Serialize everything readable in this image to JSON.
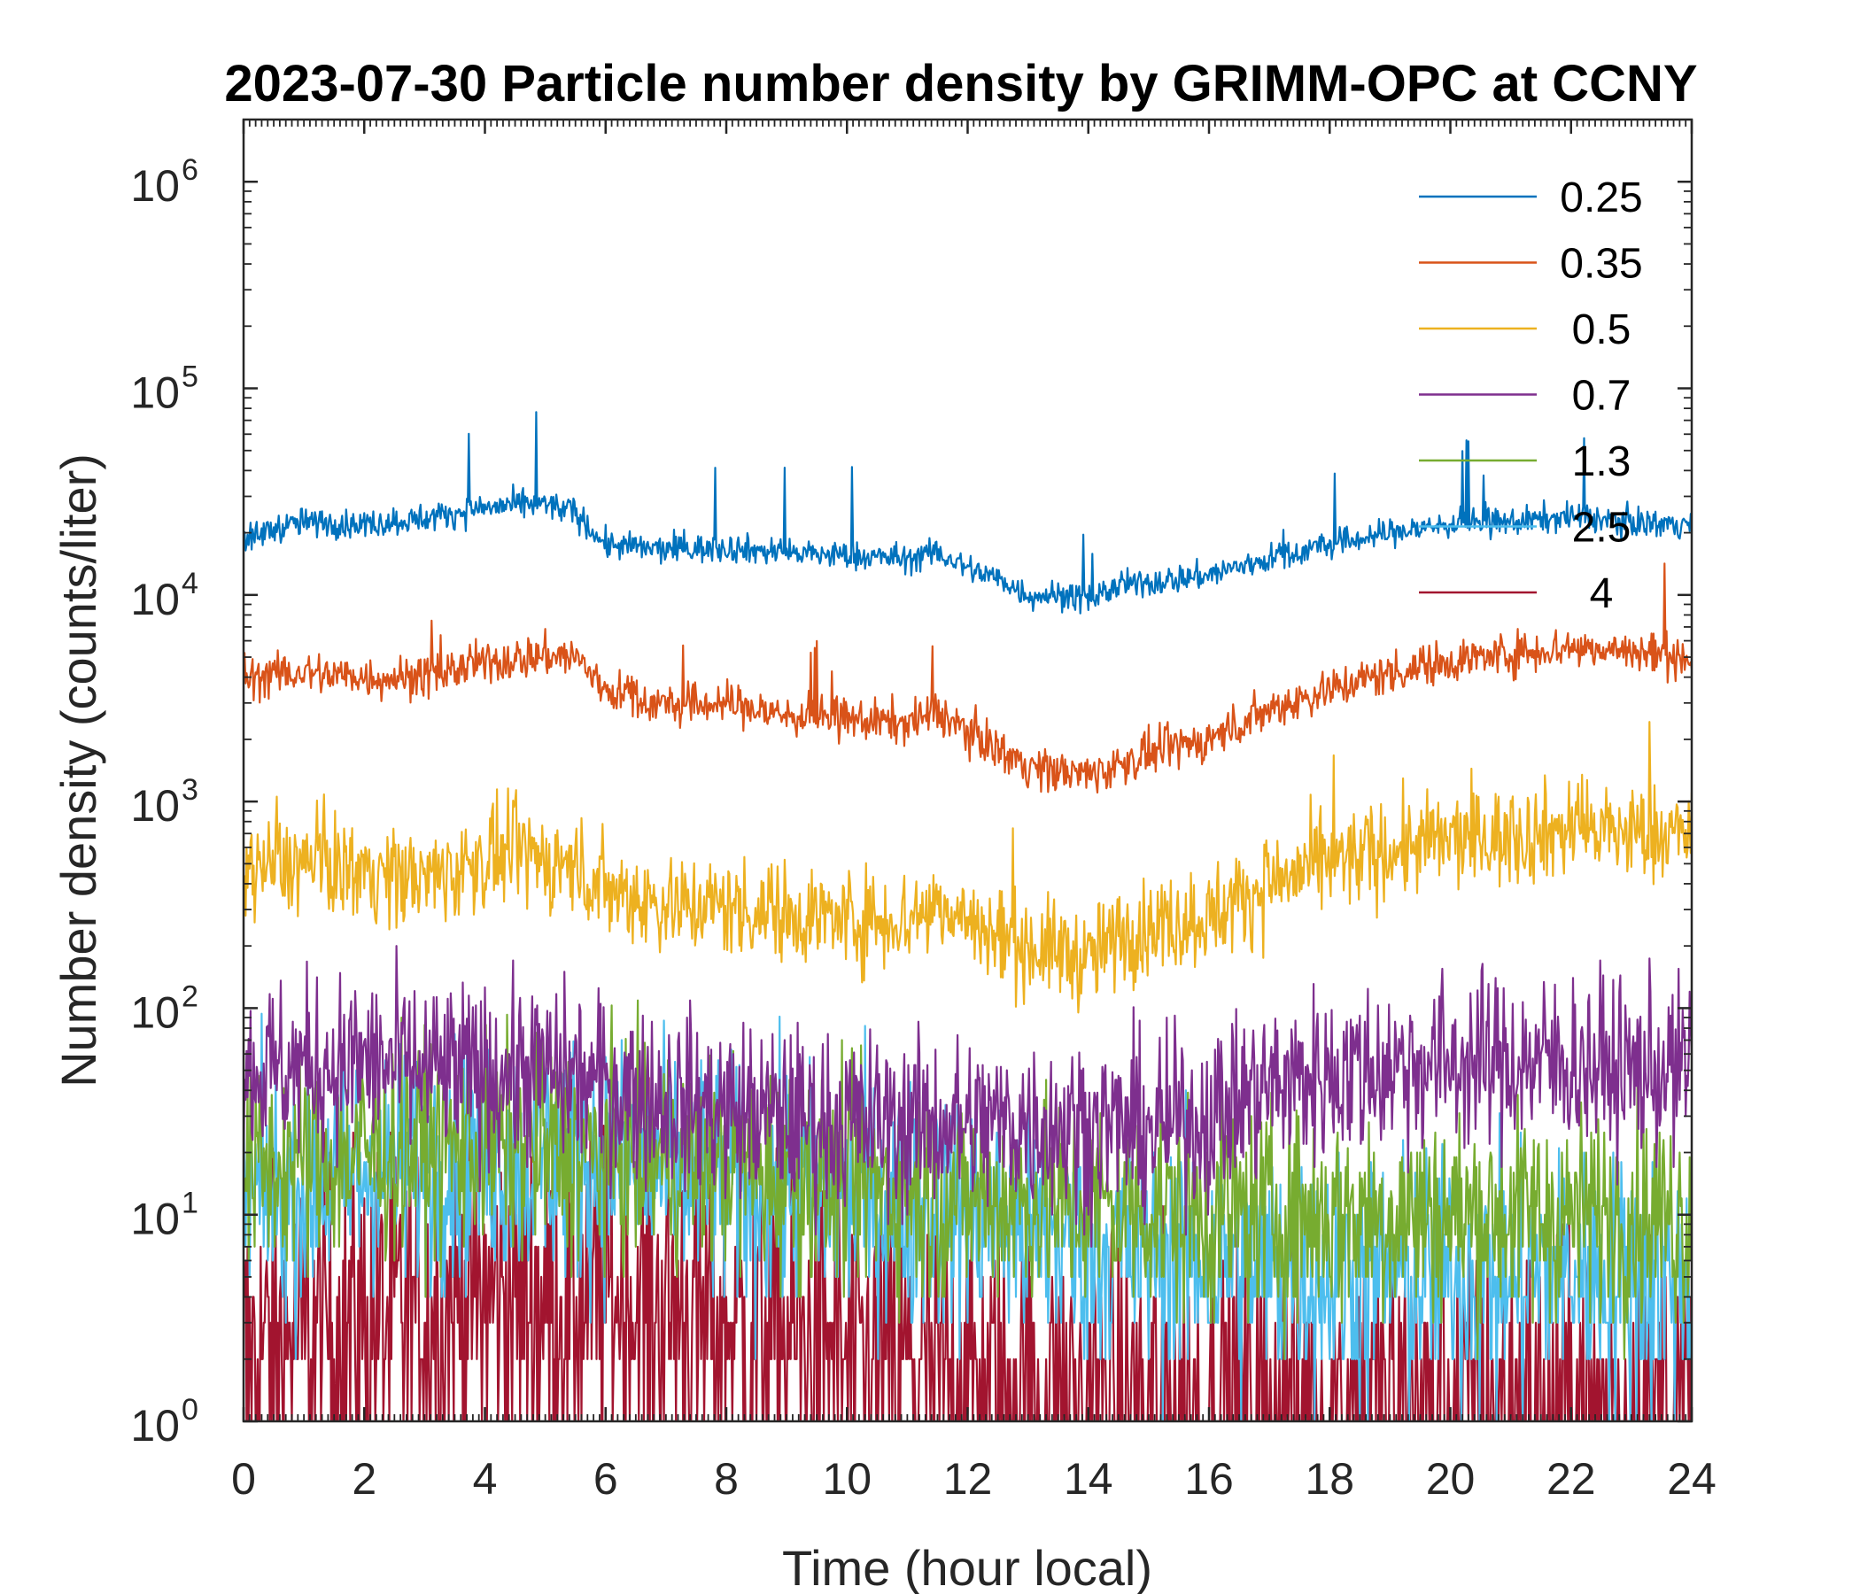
{
  "chart_data": {
    "type": "line",
    "title": "2023-07-30 Particle number density by GRIMM-OPC at CCNY",
    "xlabel": "Time (hour local)",
    "ylabel": "Number density (counts/liter)",
    "xlim": [
      0,
      24
    ],
    "ylim": [
      1,
      2000000
    ],
    "yscale": "log",
    "xticks": [
      0,
      2,
      4,
      6,
      8,
      10,
      12,
      14,
      16,
      18,
      20,
      22,
      24
    ],
    "yticks": [
      {
        "value": 1,
        "base": "10",
        "exp": "0"
      },
      {
        "value": 10,
        "base": "10",
        "exp": "1"
      },
      {
        "value": 100,
        "base": "10",
        "exp": "2"
      },
      {
        "value": 1000,
        "base": "10",
        "exp": "3"
      },
      {
        "value": 10000,
        "base": "10",
        "exp": "4"
      },
      {
        "value": 100000,
        "base": "10",
        "exp": "5"
      },
      {
        "value": 1000000,
        "base": "10",
        "exp": "6"
      }
    ],
    "legend_position": "top-right",
    "series": [
      {
        "name": "0.25",
        "color": "#0072BD",
        "noise": 0.08,
        "spikes": 0.08,
        "x": [
          0,
          0.5,
          1,
          2,
          3,
          4,
          5,
          5.5,
          6,
          7,
          8,
          9,
          10,
          11,
          11.5,
          12,
          12.5,
          13,
          13.5,
          14,
          14.5,
          15,
          16,
          17,
          18,
          19,
          20,
          21,
          22,
          23,
          24
        ],
        "y": [
          18000,
          21000,
          22500,
          22000,
          23500,
          26500,
          27500,
          25000,
          17500,
          16500,
          17000,
          16000,
          15500,
          15000,
          16000,
          13500,
          12000,
          10000,
          10000,
          9500,
          11000,
          11500,
          12500,
          15000,
          17500,
          20000,
          22000,
          22500,
          24000,
          22500,
          22000
        ]
      },
      {
        "name": "0.35",
        "color": "#D95319",
        "noise": 0.12,
        "spikes": 0.05,
        "x": [
          0,
          1,
          2,
          3,
          4,
          5,
          5.5,
          6,
          7,
          8,
          9,
          10,
          11,
          11.5,
          12,
          12.5,
          13,
          13.5,
          14,
          14.5,
          15,
          16,
          17,
          18,
          19,
          20,
          21,
          22,
          23,
          24
        ],
        "y": [
          4000,
          4200,
          4000,
          4000,
          4700,
          5100,
          5000,
          3500,
          2900,
          3000,
          2600,
          2500,
          2400,
          2700,
          2200,
          1800,
          1500,
          1400,
          1350,
          1500,
          1700,
          2000,
          2800,
          3500,
          4200,
          4800,
          5200,
          5600,
          5300,
          5000
        ]
      },
      {
        "name": "0.5",
        "color": "#EDB120",
        "noise": 0.28,
        "spikes": 0.04,
        "x": [
          0,
          1,
          2,
          3,
          4,
          4.5,
          5,
          5.5,
          6,
          7,
          8,
          9,
          10,
          11,
          11.5,
          12,
          12.5,
          13,
          13.5,
          14,
          14.5,
          15,
          16,
          17,
          18,
          19,
          20,
          21,
          22,
          23,
          24
        ],
        "y": [
          480,
          500,
          470,
          420,
          520,
          560,
          520,
          480,
          380,
          320,
          310,
          290,
          270,
          270,
          320,
          260,
          220,
          200,
          190,
          170,
          220,
          250,
          280,
          400,
          500,
          580,
          650,
          680,
          740,
          700,
          700
        ]
      },
      {
        "name": "0.7",
        "color": "#7E2F8E",
        "noise": 0.5,
        "spikes": 0,
        "x": [
          0,
          1,
          2,
          3,
          4,
          5,
          6,
          7,
          8,
          9,
          10,
          11,
          12,
          13,
          14,
          15,
          16,
          17,
          18,
          19,
          20,
          21,
          22,
          23,
          24
        ],
        "y": [
          50,
          52,
          55,
          50,
          48,
          50,
          42,
          36,
          32,
          30,
          28,
          28,
          27,
          28,
          27,
          26,
          30,
          42,
          48,
          52,
          55,
          55,
          55,
          50,
          50
        ]
      },
      {
        "name": "1.3",
        "color": "#77AC30",
        "noise": 0.6,
        "spikes": 0,
        "x": [
          0,
          2,
          4,
          6,
          8,
          10,
          12,
          14,
          16,
          18,
          20,
          22,
          24
        ],
        "y": [
          16,
          20,
          22,
          19,
          18,
          14,
          12,
          11,
          10,
          10,
          10,
          10,
          10
        ]
      },
      {
        "name": "2.5",
        "color": "#4DBEEE",
        "noise": 0.7,
        "spikes": 0,
        "x": [
          0,
          2,
          4,
          6,
          8,
          10,
          12,
          14,
          16,
          18,
          20,
          22,
          24
        ],
        "y": [
          12,
          16,
          20,
          18,
          14,
          12,
          10,
          7,
          6,
          5,
          5,
          5,
          5
        ]
      },
      {
        "name": "4",
        "color": "#A2142F",
        "noise": 1.0,
        "spikes": 0,
        "x": [
          0,
          2,
          4,
          6,
          8,
          10,
          12,
          14,
          16,
          18,
          20,
          22,
          24
        ],
        "y": [
          2,
          3,
          4,
          4,
          3,
          2,
          1.5,
          1.2,
          1.2,
          1.2,
          1.2,
          1.2,
          1.2
        ]
      }
    ]
  }
}
